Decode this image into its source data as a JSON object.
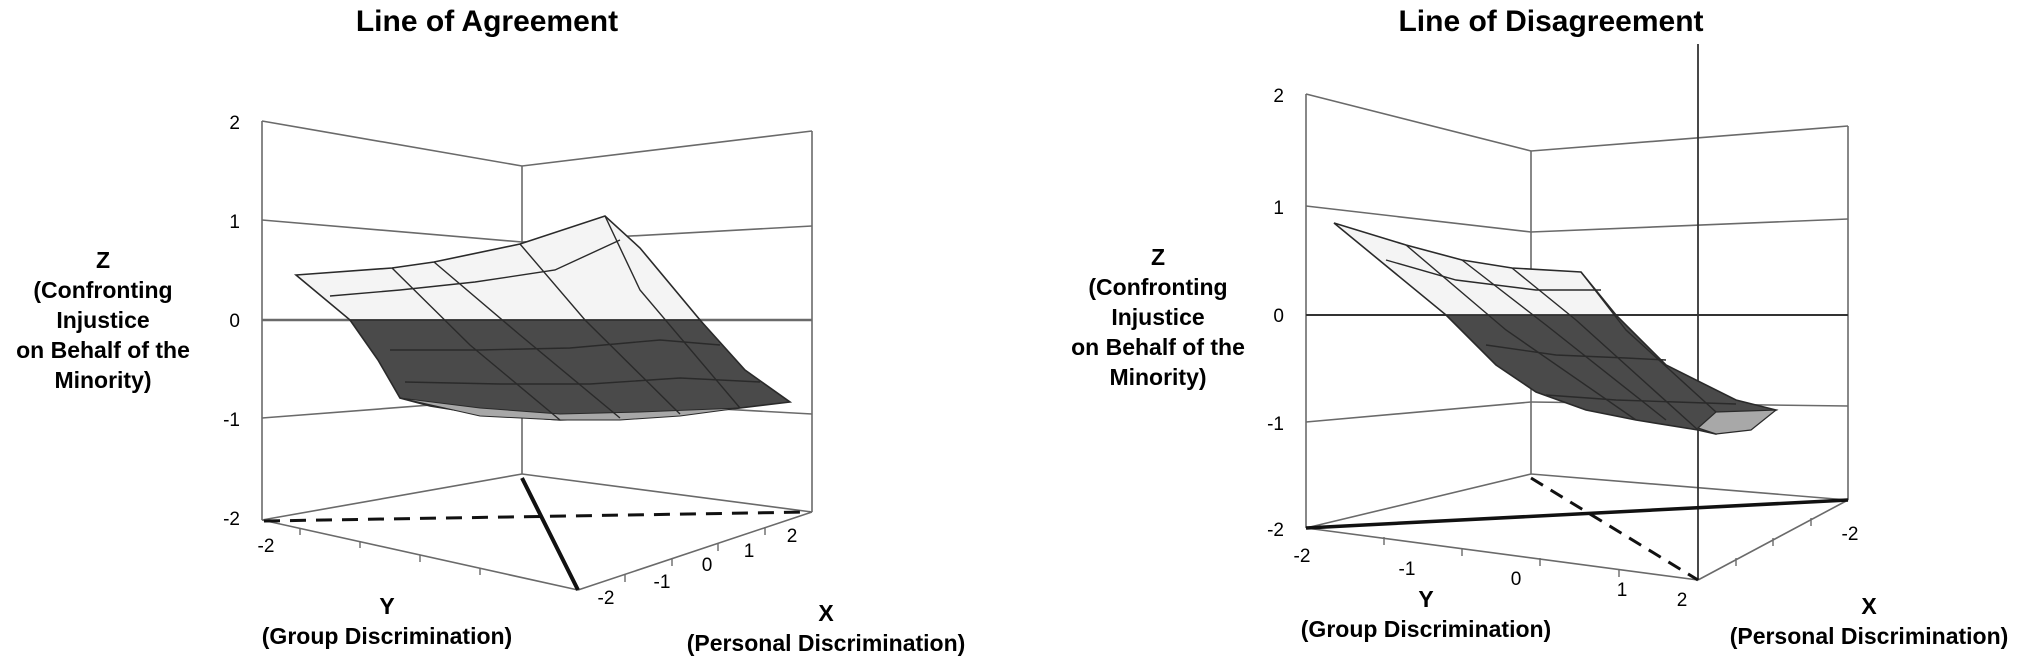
{
  "chart_data": [
    {
      "type": "surface",
      "title": "Line of Agreement",
      "z_label": [
        "Z",
        "(Confronting",
        "Injustice",
        "on Behalf of the",
        "Minority)"
      ],
      "y_label": [
        "Y",
        "(Group Discrimination)"
      ],
      "x_label": [
        "X",
        "(Personal Discrimination)"
      ],
      "z_ticks": [
        "2",
        "1",
        "0",
        "-1",
        "-2"
      ],
      "y_ticks": [
        "-2"
      ],
      "x_ticks": [
        "-2",
        "-1",
        "0",
        "1",
        "2"
      ],
      "zlim": [
        -2,
        2
      ],
      "grid": true,
      "line_styles": {
        "agreement_line": "solid",
        "disagreement_line": "dashed"
      },
      "colors": {
        "surface_above_zero": "#f4f4f4",
        "surface_below_zero": "#4a4a4a",
        "surface_underside": "#a8a8a8"
      }
    },
    {
      "type": "surface",
      "title": "Line of Disagreement",
      "z_label": [
        "Z",
        "(Confronting",
        "Injustice",
        "on Behalf of the",
        "Minority)"
      ],
      "y_label": [
        "Y",
        "(Group Discrimination)"
      ],
      "x_label": [
        "X",
        "(Personal Discrimination)"
      ],
      "z_ticks": [
        "2",
        "1",
        "0",
        "-1",
        "-2"
      ],
      "y_ticks": [
        "-2",
        "-1",
        "0",
        "1",
        "2"
      ],
      "x_ticks": [
        "-2"
      ],
      "zlim": [
        -2,
        2
      ],
      "grid": true,
      "line_styles": {
        "agreement_line": "dashed",
        "disagreement_line": "solid"
      },
      "colors": {
        "surface_above_zero": "#f4f4f4",
        "surface_below_zero": "#4a4a4a",
        "surface_underside": "#a8a8a8"
      }
    }
  ]
}
